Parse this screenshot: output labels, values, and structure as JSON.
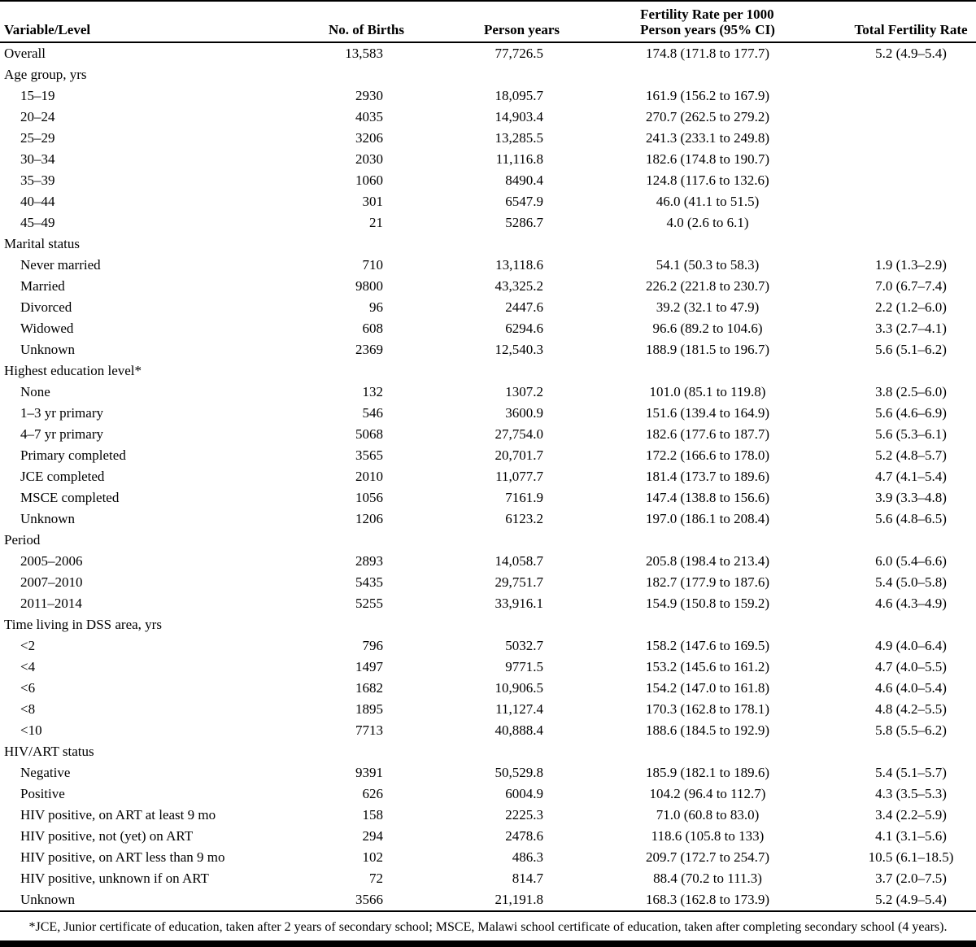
{
  "colors": {
    "text": "#000000",
    "background": "#ffffff",
    "rule": "#000000"
  },
  "header": {
    "col1": "Variable/Level",
    "col2": "No. of Births",
    "col3": "Person years",
    "col4_line1": "Fertility Rate per 1000",
    "col4_line2": "Person years (95% CI)",
    "col5": "Total Fertility Rate"
  },
  "rows": [
    {
      "type": "data",
      "indent": 0,
      "label": "Overall",
      "births": "13,583",
      "person_years": "77,726.5",
      "rate_ci": "174.8 (171.8 to 177.7)",
      "tfr_ci": "5.2 (4.9–5.4)"
    },
    {
      "type": "section",
      "indent": 0,
      "label": "Age group, yrs",
      "births": "",
      "person_years": "",
      "rate_ci": "",
      "tfr_ci": ""
    },
    {
      "type": "data",
      "indent": 1,
      "label": "15–19",
      "births": "2930",
      "person_years": "18,095.7",
      "rate_ci": "161.9 (156.2 to 167.9)",
      "tfr_ci": ""
    },
    {
      "type": "data",
      "indent": 1,
      "label": "20–24",
      "births": "4035",
      "person_years": "14,903.4",
      "rate_ci": "270.7 (262.5 to 279.2)",
      "tfr_ci": ""
    },
    {
      "type": "data",
      "indent": 1,
      "label": "25–29",
      "births": "3206",
      "person_years": "13,285.5",
      "rate_ci": "241.3 (233.1 to 249.8)",
      "tfr_ci": ""
    },
    {
      "type": "data",
      "indent": 1,
      "label": "30–34",
      "births": "2030",
      "person_years": "11,116.8",
      "rate_ci": "182.6 (174.8 to 190.7)",
      "tfr_ci": ""
    },
    {
      "type": "data",
      "indent": 1,
      "label": "35–39",
      "births": "1060",
      "person_years": "8490.4",
      "rate_ci": "124.8 (117.6 to 132.6)",
      "tfr_ci": ""
    },
    {
      "type": "data",
      "indent": 1,
      "label": "40–44",
      "births": "301",
      "person_years": "6547.9",
      "rate_ci": "46.0 (41.1 to 51.5)",
      "tfr_ci": ""
    },
    {
      "type": "data",
      "indent": 1,
      "label": "45–49",
      "births": "21",
      "person_years": "5286.7",
      "rate_ci": "4.0 (2.6 to 6.1)",
      "tfr_ci": ""
    },
    {
      "type": "section",
      "indent": 0,
      "label": "Marital status",
      "births": "",
      "person_years": "",
      "rate_ci": "",
      "tfr_ci": ""
    },
    {
      "type": "data",
      "indent": 1,
      "label": "Never married",
      "births": "710",
      "person_years": "13,118.6",
      "rate_ci": "54.1 (50.3 to 58.3)",
      "tfr_ci": "1.9 (1.3–2.9)"
    },
    {
      "type": "data",
      "indent": 1,
      "label": "Married",
      "births": "9800",
      "person_years": "43,325.2",
      "rate_ci": "226.2 (221.8 to 230.7)",
      "tfr_ci": "7.0 (6.7–7.4)"
    },
    {
      "type": "data",
      "indent": 1,
      "label": "Divorced",
      "births": "96",
      "person_years": "2447.6",
      "rate_ci": "39.2 (32.1 to 47.9)",
      "tfr_ci": "2.2 (1.2–6.0)"
    },
    {
      "type": "data",
      "indent": 1,
      "label": "Widowed",
      "births": "608",
      "person_years": "6294.6",
      "rate_ci": "96.6 (89.2 to 104.6)",
      "tfr_ci": "3.3 (2.7–4.1)"
    },
    {
      "type": "data",
      "indent": 1,
      "label": "Unknown",
      "births": "2369",
      "person_years": "12,540.3",
      "rate_ci": "188.9 (181.5 to 196.7)",
      "tfr_ci": "5.6 (5.1–6.2)"
    },
    {
      "type": "section",
      "indent": 0,
      "label": "Highest education level*",
      "births": "",
      "person_years": "",
      "rate_ci": "",
      "tfr_ci": ""
    },
    {
      "type": "data",
      "indent": 1,
      "label": "None",
      "births": "132",
      "person_years": "1307.2",
      "rate_ci": "101.0 (85.1 to 119.8)",
      "tfr_ci": "3.8 (2.5–6.0)"
    },
    {
      "type": "data",
      "indent": 1,
      "label": "1–3 yr primary",
      "births": "546",
      "person_years": "3600.9",
      "rate_ci": "151.6 (139.4 to 164.9)",
      "tfr_ci": "5.6 (4.6–6.9)"
    },
    {
      "type": "data",
      "indent": 1,
      "label": "4–7 yr primary",
      "births": "5068",
      "person_years": "27,754.0",
      "rate_ci": "182.6 (177.6 to 187.7)",
      "tfr_ci": "5.6 (5.3–6.1)"
    },
    {
      "type": "data",
      "indent": 1,
      "label": "Primary completed",
      "births": "3565",
      "person_years": "20,701.7",
      "rate_ci": "172.2 (166.6 to 178.0)",
      "tfr_ci": "5.2 (4.8–5.7)"
    },
    {
      "type": "data",
      "indent": 1,
      "label": "JCE completed",
      "births": "2010",
      "person_years": "11,077.7",
      "rate_ci": "181.4 (173.7 to 189.6)",
      "tfr_ci": "4.7 (4.1–5.4)"
    },
    {
      "type": "data",
      "indent": 1,
      "label": "MSCE completed",
      "births": "1056",
      "person_years": "7161.9",
      "rate_ci": "147.4 (138.8 to 156.6)",
      "tfr_ci": "3.9 (3.3–4.8)"
    },
    {
      "type": "data",
      "indent": 1,
      "label": "Unknown",
      "births": "1206",
      "person_years": "6123.2",
      "rate_ci": "197.0 (186.1 to 208.4)",
      "tfr_ci": "5.6 (4.8–6.5)"
    },
    {
      "type": "section",
      "indent": 0,
      "label": "Period",
      "births": "",
      "person_years": "",
      "rate_ci": "",
      "tfr_ci": ""
    },
    {
      "type": "data",
      "indent": 1,
      "label": "2005–2006",
      "births": "2893",
      "person_years": "14,058.7",
      "rate_ci": "205.8 (198.4 to 213.4)",
      "tfr_ci": "6.0 (5.4–6.6)"
    },
    {
      "type": "data",
      "indent": 1,
      "label": "2007–2010",
      "births": "5435",
      "person_years": "29,751.7",
      "rate_ci": "182.7 (177.9 to 187.6)",
      "tfr_ci": "5.4 (5.0–5.8)"
    },
    {
      "type": "data",
      "indent": 1,
      "label": "2011–2014",
      "births": "5255",
      "person_years": "33,916.1",
      "rate_ci": "154.9 (150.8 to 159.2)",
      "tfr_ci": "4.6 (4.3–4.9)"
    },
    {
      "type": "section",
      "indent": 0,
      "label": "Time living in DSS area, yrs",
      "births": "",
      "person_years": "",
      "rate_ci": "",
      "tfr_ci": ""
    },
    {
      "type": "data",
      "indent": 1,
      "label": "<2",
      "births": "796",
      "person_years": "5032.7",
      "rate_ci": "158.2 (147.6 to 169.5)",
      "tfr_ci": "4.9 (4.0–6.4)"
    },
    {
      "type": "data",
      "indent": 1,
      "label": "<4",
      "births": "1497",
      "person_years": "9771.5",
      "rate_ci": "153.2 (145.6 to 161.2)",
      "tfr_ci": "4.7 (4.0–5.5)"
    },
    {
      "type": "data",
      "indent": 1,
      "label": "<6",
      "births": "1682",
      "person_years": "10,906.5",
      "rate_ci": "154.2 (147.0 to 161.8)",
      "tfr_ci": "4.6 (4.0–5.4)"
    },
    {
      "type": "data",
      "indent": 1,
      "label": "<8",
      "births": "1895",
      "person_years": "11,127.4",
      "rate_ci": "170.3 (162.8 to 178.1)",
      "tfr_ci": "4.8 (4.2–5.5)"
    },
    {
      "type": "data",
      "indent": 1,
      "label": "<10",
      "births": "7713",
      "person_years": "40,888.4",
      "rate_ci": "188.6 (184.5 to 192.9)",
      "tfr_ci": "5.8 (5.5–6.2)"
    },
    {
      "type": "section",
      "indent": 0,
      "label": "HIV/ART status",
      "births": "",
      "person_years": "",
      "rate_ci": "",
      "tfr_ci": ""
    },
    {
      "type": "data",
      "indent": 1,
      "label": "Negative",
      "births": "9391",
      "person_years": "50,529.8",
      "rate_ci": "185.9 (182.1 to 189.6)",
      "tfr_ci": "5.4 (5.1–5.7)"
    },
    {
      "type": "data",
      "indent": 1,
      "label": "Positive",
      "births": "626",
      "person_years": "6004.9",
      "rate_ci": "104.2 (96.4 to 112.7)",
      "tfr_ci": "4.3 (3.5–5.3)"
    },
    {
      "type": "data",
      "indent": 1,
      "label": "HIV positive, on ART at least 9 mo",
      "births": "158",
      "person_years": "2225.3",
      "rate_ci": "71.0 (60.8 to 83.0)",
      "tfr_ci": "3.4 (2.2–5.9)"
    },
    {
      "type": "data",
      "indent": 1,
      "label": "HIV positive, not (yet) on ART",
      "births": "294",
      "person_years": "2478.6",
      "rate_ci": "118.6 (105.8 to 133)",
      "tfr_ci": "4.1 (3.1–5.6)"
    },
    {
      "type": "data",
      "indent": 1,
      "label": "HIV positive, on ART less than 9 mo",
      "births": "102",
      "person_years": "486.3",
      "rate_ci": "209.7 (172.7 to 254.7)",
      "tfr_ci": "10.5 (6.1–18.5)"
    },
    {
      "type": "data",
      "indent": 1,
      "label": "HIV positive, unknown if on ART",
      "births": "72",
      "person_years": "814.7",
      "rate_ci": "88.4 (70.2 to 111.3)",
      "tfr_ci": "3.7 (2.0–7.5)"
    },
    {
      "type": "data",
      "indent": 1,
      "label": "Unknown",
      "births": "3566",
      "person_years": "21,191.8",
      "rate_ci": "168.3 (162.8 to 173.9)",
      "tfr_ci": "5.2 (4.9–5.4)"
    }
  ],
  "footnote": "*JCE, Junior certificate of education, taken after 2 years of secondary school; MSCE, Malawi school certificate of education, taken after completing secondary school (4 years)."
}
